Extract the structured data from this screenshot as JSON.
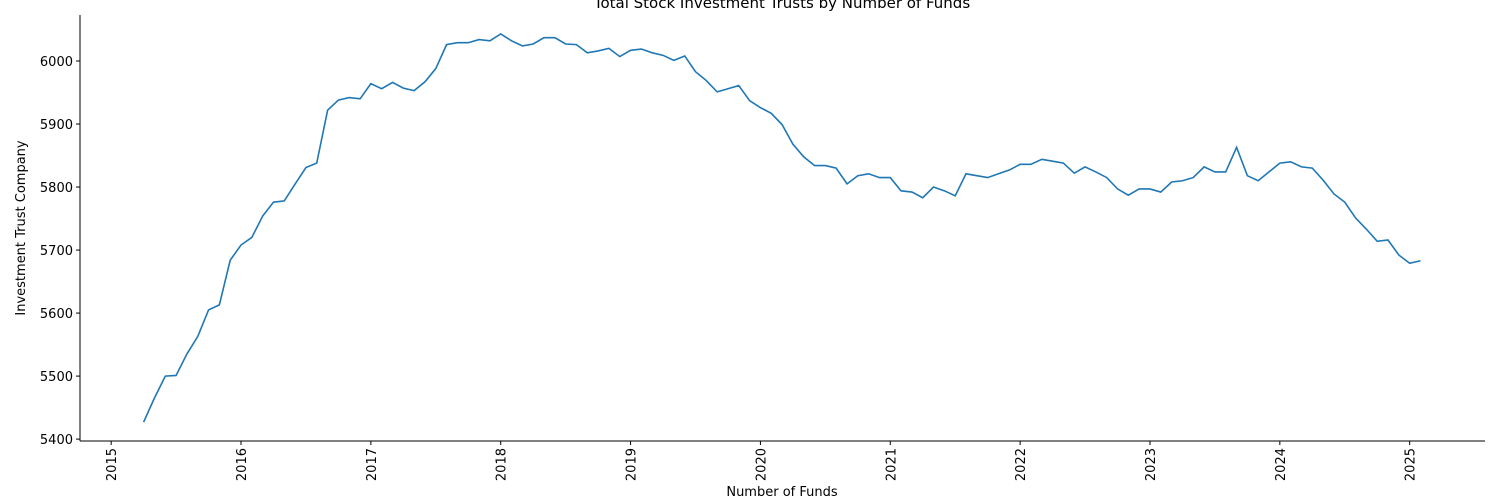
{
  "chart_data": {
    "type": "line",
    "title": "Total Stock Investment Trusts by Number of Funds",
    "x_label": "Number of Funds",
    "y_label": "Investment Trust Company",
    "x": [
      2015.25,
      2015.333,
      2015.417,
      2015.5,
      2015.583,
      2015.667,
      2015.75,
      2015.833,
      2015.917,
      2016.0,
      2016.083,
      2016.167,
      2016.25,
      2016.333,
      2016.417,
      2016.5,
      2016.583,
      2016.667,
      2016.75,
      2016.833,
      2016.917,
      2017.0,
      2017.083,
      2017.167,
      2017.25,
      2017.333,
      2017.417,
      2017.5,
      2017.583,
      2017.667,
      2017.75,
      2017.833,
      2017.917,
      2018.0,
      2018.083,
      2018.167,
      2018.25,
      2018.333,
      2018.417,
      2018.5,
      2018.583,
      2018.667,
      2018.75,
      2018.833,
      2018.917,
      2019.0,
      2019.083,
      2019.167,
      2019.25,
      2019.333,
      2019.417,
      2019.5,
      2019.583,
      2019.667,
      2019.75,
      2019.833,
      2019.917,
      2020.0,
      2020.083,
      2020.167,
      2020.25,
      2020.333,
      2020.417,
      2020.5,
      2020.583,
      2020.667,
      2020.75,
      2020.833,
      2020.917,
      2021.0,
      2021.083,
      2021.167,
      2021.25,
      2021.333,
      2021.417,
      2021.5,
      2021.583,
      2021.667,
      2021.75,
      2021.833,
      2021.917,
      2022.0,
      2022.083,
      2022.167,
      2022.25,
      2022.333,
      2022.417,
      2022.5,
      2022.583,
      2022.667,
      2022.75,
      2022.833,
      2022.917,
      2023.0,
      2023.083,
      2023.167,
      2023.25,
      2023.333,
      2023.417,
      2023.5,
      2023.583,
      2023.667,
      2023.75,
      2023.833,
      2023.917,
      2024.0,
      2024.083,
      2024.167,
      2024.25,
      2024.333,
      2024.417,
      2024.5,
      2024.583,
      2024.667,
      2024.75,
      2024.833,
      2024.917,
      2025.0,
      2025.083
    ],
    "series": [
      {
        "color": "#1f77b4",
        "values": [
          5427,
          5465,
          5500,
          5501,
          5535,
          5563,
          5605,
          5613,
          5684,
          5708,
          5720,
          5754,
          5776,
          5778,
          5805,
          5831,
          5838,
          5922,
          5938,
          5942,
          5940,
          5964,
          5956,
          5966,
          5957,
          5953,
          5967,
          5988,
          6026,
          6029,
          6029,
          6034,
          6032,
          6043,
          6032,
          6024,
          6027,
          6037,
          6037,
          6027,
          6026,
          6013,
          6016,
          6020,
          6007,
          6017,
          6019,
          6013,
          6009,
          6001,
          6008,
          5983,
          5969,
          5951,
          5956,
          5961,
          5937,
          5926,
          5917,
          5899,
          5868,
          5848,
          5834,
          5834,
          5830,
          5805,
          5818,
          5821,
          5815,
          5815,
          5794,
          5792,
          5783,
          5800,
          5794,
          5786,
          5821,
          5818,
          5815,
          5821,
          5827,
          5836,
          5836,
          5844,
          5841,
          5838,
          5822,
          5832,
          5824,
          5815,
          5797,
          5787,
          5797,
          5797,
          5792,
          5808,
          5810,
          5815,
          5832,
          5824,
          5824,
          5863,
          5818,
          5810,
          5824,
          5838,
          5840,
          5832,
          5830,
          5811,
          5789,
          5776,
          5751,
          5733,
          5714,
          5716,
          5692,
          5679,
          5683
        ]
      }
    ],
    "xlim": [
      2014.76,
      2025.58
    ],
    "ylim": [
      5397,
      6073
    ],
    "xticks": [
      2015,
      2016,
      2017,
      2018,
      2019,
      2020,
      2021,
      2022,
      2023,
      2024,
      2025
    ],
    "yticks": [
      5400,
      5500,
      5600,
      5700,
      5800,
      5900,
      6000
    ]
  }
}
